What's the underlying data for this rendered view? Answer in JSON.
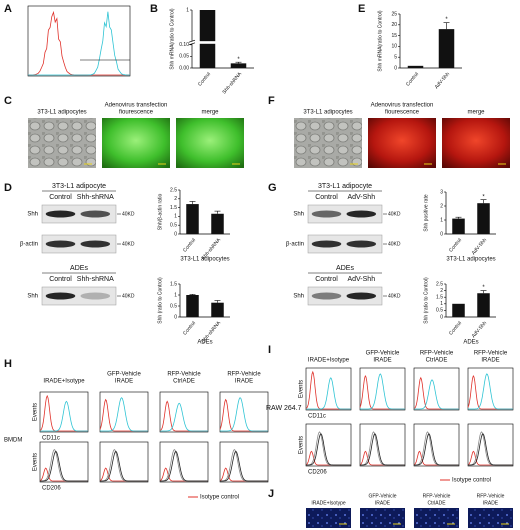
{
  "panel_a": {
    "letter": "A"
  },
  "panel_b": {
    "letter": "B",
    "chart": {
      "type": "bar",
      "y_label": "Shh mRNA(ratio to Control)",
      "categories": [
        "Control",
        "Shh-shRNA"
      ],
      "values": [
        1,
        0.02
      ],
      "errors": [
        0,
        0.005
      ],
      "color": "#111111",
      "ylim": [
        0,
        1
      ],
      "axis_break": [
        0.1,
        0.8
      ],
      "yticks": [
        {
          "value": 0,
          "label": "0.00"
        },
        {
          "value": 0.05,
          "label": "0.05"
        },
        {
          "value": 0.1,
          "label": "0.10"
        },
        1
      ],
      "annotations": [
        {
          "text": "*",
          "category": "Shh-shRNA"
        }
      ]
    }
  },
  "panel_e": {
    "letter": "E",
    "chart": {
      "type": "bar",
      "y_label": "Shh mRNA(ratio to Control)",
      "categories": [
        "Control",
        "AdV-Shh"
      ],
      "values": [
        1,
        18
      ],
      "errors": [
        0,
        3
      ],
      "color": "#111111",
      "ylim": [
        0,
        25
      ],
      "yticks": [
        0,
        5,
        10,
        15,
        20,
        25
      ],
      "annotations": [
        {
          "text": "*",
          "category": "AdV-Shh"
        }
      ]
    }
  },
  "panel_c": {
    "letter": "C",
    "captions": [
      [
        "3T3-L1 adipocytes"
      ],
      [
        "Adenovirus transfection",
        "fiourescence"
      ],
      [
        "merge"
      ]
    ]
  },
  "panel_f": {
    "letter": "F",
    "captions": [
      [
        "3T3-L1 adipocytes"
      ],
      [
        "Adenovirus transfection",
        "fiourescence"
      ],
      [
        "merge"
      ]
    ]
  },
  "panel_d": {
    "letter": "D",
    "blots": [
      {
        "title": "3T3-L1 adipocyte",
        "lanes": [
          "Control",
          "Shh-shRNA"
        ],
        "rows": [
          {
            "name": "Shh",
            "size": "40KD"
          },
          {
            "name": "β-actin",
            "size": "40KD"
          }
        ]
      },
      {
        "title": "ADEs",
        "lanes": [
          "Control",
          "Shh-shRNA"
        ],
        "rows": [
          {
            "name": "Shh",
            "size": "40KD"
          }
        ]
      }
    ],
    "charts": [
      {
        "type": "bar",
        "y_label": "Shh/β-actin ratio",
        "x_label": "3T3-L1 adipocytes",
        "categories": [
          "Control",
          "Shh-shRNA"
        ],
        "values": [
          1.7,
          1.15
        ],
        "errors": [
          0.15,
          0.15
        ],
        "color": "#111111",
        "ylim": [
          0,
          2.5
        ],
        "yticks": [
          0,
          0.5,
          1,
          1.5,
          2,
          2.5
        ]
      },
      {
        "type": "bar",
        "y_label": "Shh (ratio to Control)",
        "x_label": "ADEs",
        "categories": [
          "Control",
          "Shh-shRNA"
        ],
        "values": [
          1,
          0.65
        ],
        "errors": [
          0.03,
          0.1
        ],
        "color": "#111111",
        "ylim": [
          0,
          1.5
        ],
        "yticks": [
          0,
          0.5,
          1,
          1.5
        ]
      }
    ]
  },
  "panel_g": {
    "letter": "G",
    "blots": [
      {
        "title": "3T3-L1 adipocyte",
        "lanes": [
          "Control",
          "AdV-Shh"
        ],
        "rows": [
          {
            "name": "Shh",
            "size": "40KD"
          },
          {
            "name": "β-actin",
            "size": "40KD"
          }
        ]
      },
      {
        "title": "ADEs",
        "lanes": [
          "Control",
          "AdV-Shh"
        ],
        "rows": [
          {
            "name": "Shh",
            "size": "40KD"
          }
        ]
      }
    ],
    "charts": [
      {
        "type": "bar",
        "y_label": "Shh positive rate",
        "x_label": "3T3-L1 adipocytes",
        "categories": [
          "Control",
          "AdV-Shh"
        ],
        "values": [
          1.1,
          2.2
        ],
        "errors": [
          0.1,
          0.25
        ],
        "color": "#111111",
        "ylim": [
          0,
          3
        ],
        "yticks": [
          0,
          1,
          2,
          3
        ],
        "annotations": [
          {
            "text": "*",
            "category": "AdV-Shh"
          }
        ]
      },
      {
        "type": "bar",
        "y_label": "Shh (ratio to Control)",
        "x_label": "ADEs",
        "categories": [
          "Control",
          "AdV-Shh"
        ],
        "values": [
          1,
          1.8
        ],
        "errors": [
          0,
          0.2
        ],
        "color": "#111111",
        "ylim": [
          0,
          2.5
        ],
        "yticks": [
          0,
          0.5,
          1,
          1.5,
          2,
          2.5
        ],
        "annotations": [
          {
            "text": "*",
            "category": "AdV-Shh"
          }
        ]
      }
    ]
  },
  "panel_h": {
    "letter": "H",
    "cell": "BMDM",
    "columns": [
      [
        "IRADE+Isotype"
      ],
      [
        "GFP-Vehicle",
        "IRADE"
      ],
      [
        "RFP-Vehicle",
        "CtrlADE"
      ],
      [
        "RFP-Vehicle",
        "IRADE"
      ]
    ],
    "markers": [
      "CD11c",
      "CD206"
    ],
    "y_label": "Events",
    "legend": "Isotype control"
  },
  "panel_i": {
    "letter": "I",
    "cell": "RAW 264.7",
    "columns": [
      [
        "IRADE+Isotype"
      ],
      [
        "GFP-Vehicle",
        "IRADE"
      ],
      [
        "RFP-Vehicle",
        "CtrlADE"
      ],
      [
        "RFP-Vehicle",
        "IRADE"
      ]
    ],
    "markers": [
      "CD11c",
      "CD206"
    ],
    "y_label": "Events",
    "legend": "Isotype control"
  },
  "panel_j": {
    "letter": "J",
    "columns": [
      [
        "IRADE+Isotype"
      ],
      [
        "GFP-Vehicle",
        "IRADE"
      ],
      [
        "RFP-Vehicle",
        "CtrlADE"
      ],
      [
        "RFP-Vehicle",
        "IRADE"
      ]
    ]
  }
}
